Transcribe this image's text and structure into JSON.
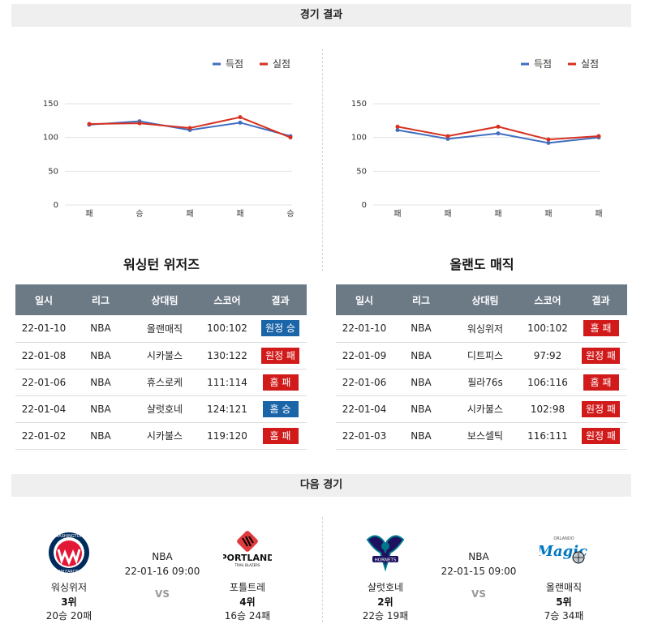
{
  "sections": {
    "results_title": "경기 결과",
    "next_title": "다음 경기"
  },
  "chart_legend": {
    "scored": "득점",
    "allowed": "실점"
  },
  "colors": {
    "scored": "#3f6fc0",
    "allowed": "#d7301f",
    "win": "#1a64a8",
    "loss": "#d11a1a",
    "header": "#6c7a86"
  },
  "chart_data": [
    {
      "type": "line",
      "categories": [
        "패",
        "승",
        "패",
        "패",
        "승"
      ],
      "series": [
        {
          "name": "득점",
          "values": [
            119,
            124,
            111,
            122,
            102
          ]
        },
        {
          "name": "실점",
          "values": [
            120,
            121,
            114,
            130,
            100
          ]
        }
      ],
      "yticks": [
        "0",
        "50",
        "100",
        "150"
      ],
      "ylim": [
        0,
        150
      ],
      "grid": true,
      "legend": "top-right"
    },
    {
      "type": "line",
      "categories": [
        "패",
        "패",
        "패",
        "패",
        "패"
      ],
      "series": [
        {
          "name": "득점",
          "values": [
            111,
            98,
            106,
            92,
            100
          ]
        },
        {
          "name": "실점",
          "values": [
            116,
            102,
            116,
            97,
            102
          ]
        }
      ],
      "yticks": [
        "0",
        "50",
        "100",
        "150"
      ],
      "ylim": [
        0,
        150
      ],
      "grid": true,
      "legend": "top-right"
    }
  ],
  "teams": {
    "left": {
      "title": "워싱턴 위저즈",
      "headers": [
        "일시",
        "리그",
        "상대팀",
        "스코어",
        "결과"
      ],
      "rows": [
        {
          "date": "22-01-10",
          "league": "NBA",
          "opp": "올랜매직",
          "score": "100:102",
          "result": "원정 승",
          "win": true
        },
        {
          "date": "22-01-08",
          "league": "NBA",
          "opp": "시카불스",
          "score": "130:122",
          "result": "원정 패",
          "win": false
        },
        {
          "date": "22-01-06",
          "league": "NBA",
          "opp": "휴스로케",
          "score": "111:114",
          "result": "홈 패",
          "win": false
        },
        {
          "date": "22-01-04",
          "league": "NBA",
          "opp": "샬럿호네",
          "score": "124:121",
          "result": "홈 승",
          "win": true
        },
        {
          "date": "22-01-02",
          "league": "NBA",
          "opp": "시카불스",
          "score": "119:120",
          "result": "홈 패",
          "win": false
        }
      ]
    },
    "right": {
      "title": "올랜도 매직",
      "headers": [
        "일시",
        "리그",
        "상대팀",
        "스코어",
        "결과"
      ],
      "rows": [
        {
          "date": "22-01-10",
          "league": "NBA",
          "opp": "워싱위저",
          "score": "100:102",
          "result": "홈 패",
          "win": false
        },
        {
          "date": "22-01-09",
          "league": "NBA",
          "opp": "디트피스",
          "score": "97:92",
          "result": "원정 패",
          "win": false
        },
        {
          "date": "22-01-06",
          "league": "NBA",
          "opp": "필라76s",
          "score": "106:116",
          "result": "홈 패",
          "win": false
        },
        {
          "date": "22-01-04",
          "league": "NBA",
          "opp": "시카불스",
          "score": "102:98",
          "result": "원정 패",
          "win": false
        },
        {
          "date": "22-01-03",
          "league": "NBA",
          "opp": "보스셀틱",
          "score": "116:111",
          "result": "원정 패",
          "win": false
        }
      ]
    }
  },
  "next_games": [
    {
      "league": "NBA",
      "datetime": "22-01-16 09:00",
      "vs": "VS",
      "home": {
        "name": "워싱위저",
        "rank": "3위",
        "record": "20승 20패",
        "logo_icon": "wizards-logo-icon",
        "logo_text": "WASHINGTON",
        "logo_text2": "WIZARDS"
      },
      "away": {
        "name": "포틀트레",
        "rank": "4위",
        "record": "16승 24패",
        "logo_icon": "trail-blazers-logo-icon",
        "logo_text": "PORTLAND",
        "logo_text2": "TRAIL BLAZERS"
      }
    },
    {
      "league": "NBA",
      "datetime": "22-01-15 09:00",
      "vs": "VS",
      "home": {
        "name": "샬럿호네",
        "rank": "2위",
        "record": "22승 19패",
        "logo_icon": "hornets-logo-icon",
        "logo_text": "HORNETS"
      },
      "away": {
        "name": "올랜매직",
        "rank": "5위",
        "record": "7승 34패",
        "logo_icon": "magic-logo-icon",
        "logo_text": "Magic",
        "logo_text2": "ORLANDO"
      }
    }
  ]
}
